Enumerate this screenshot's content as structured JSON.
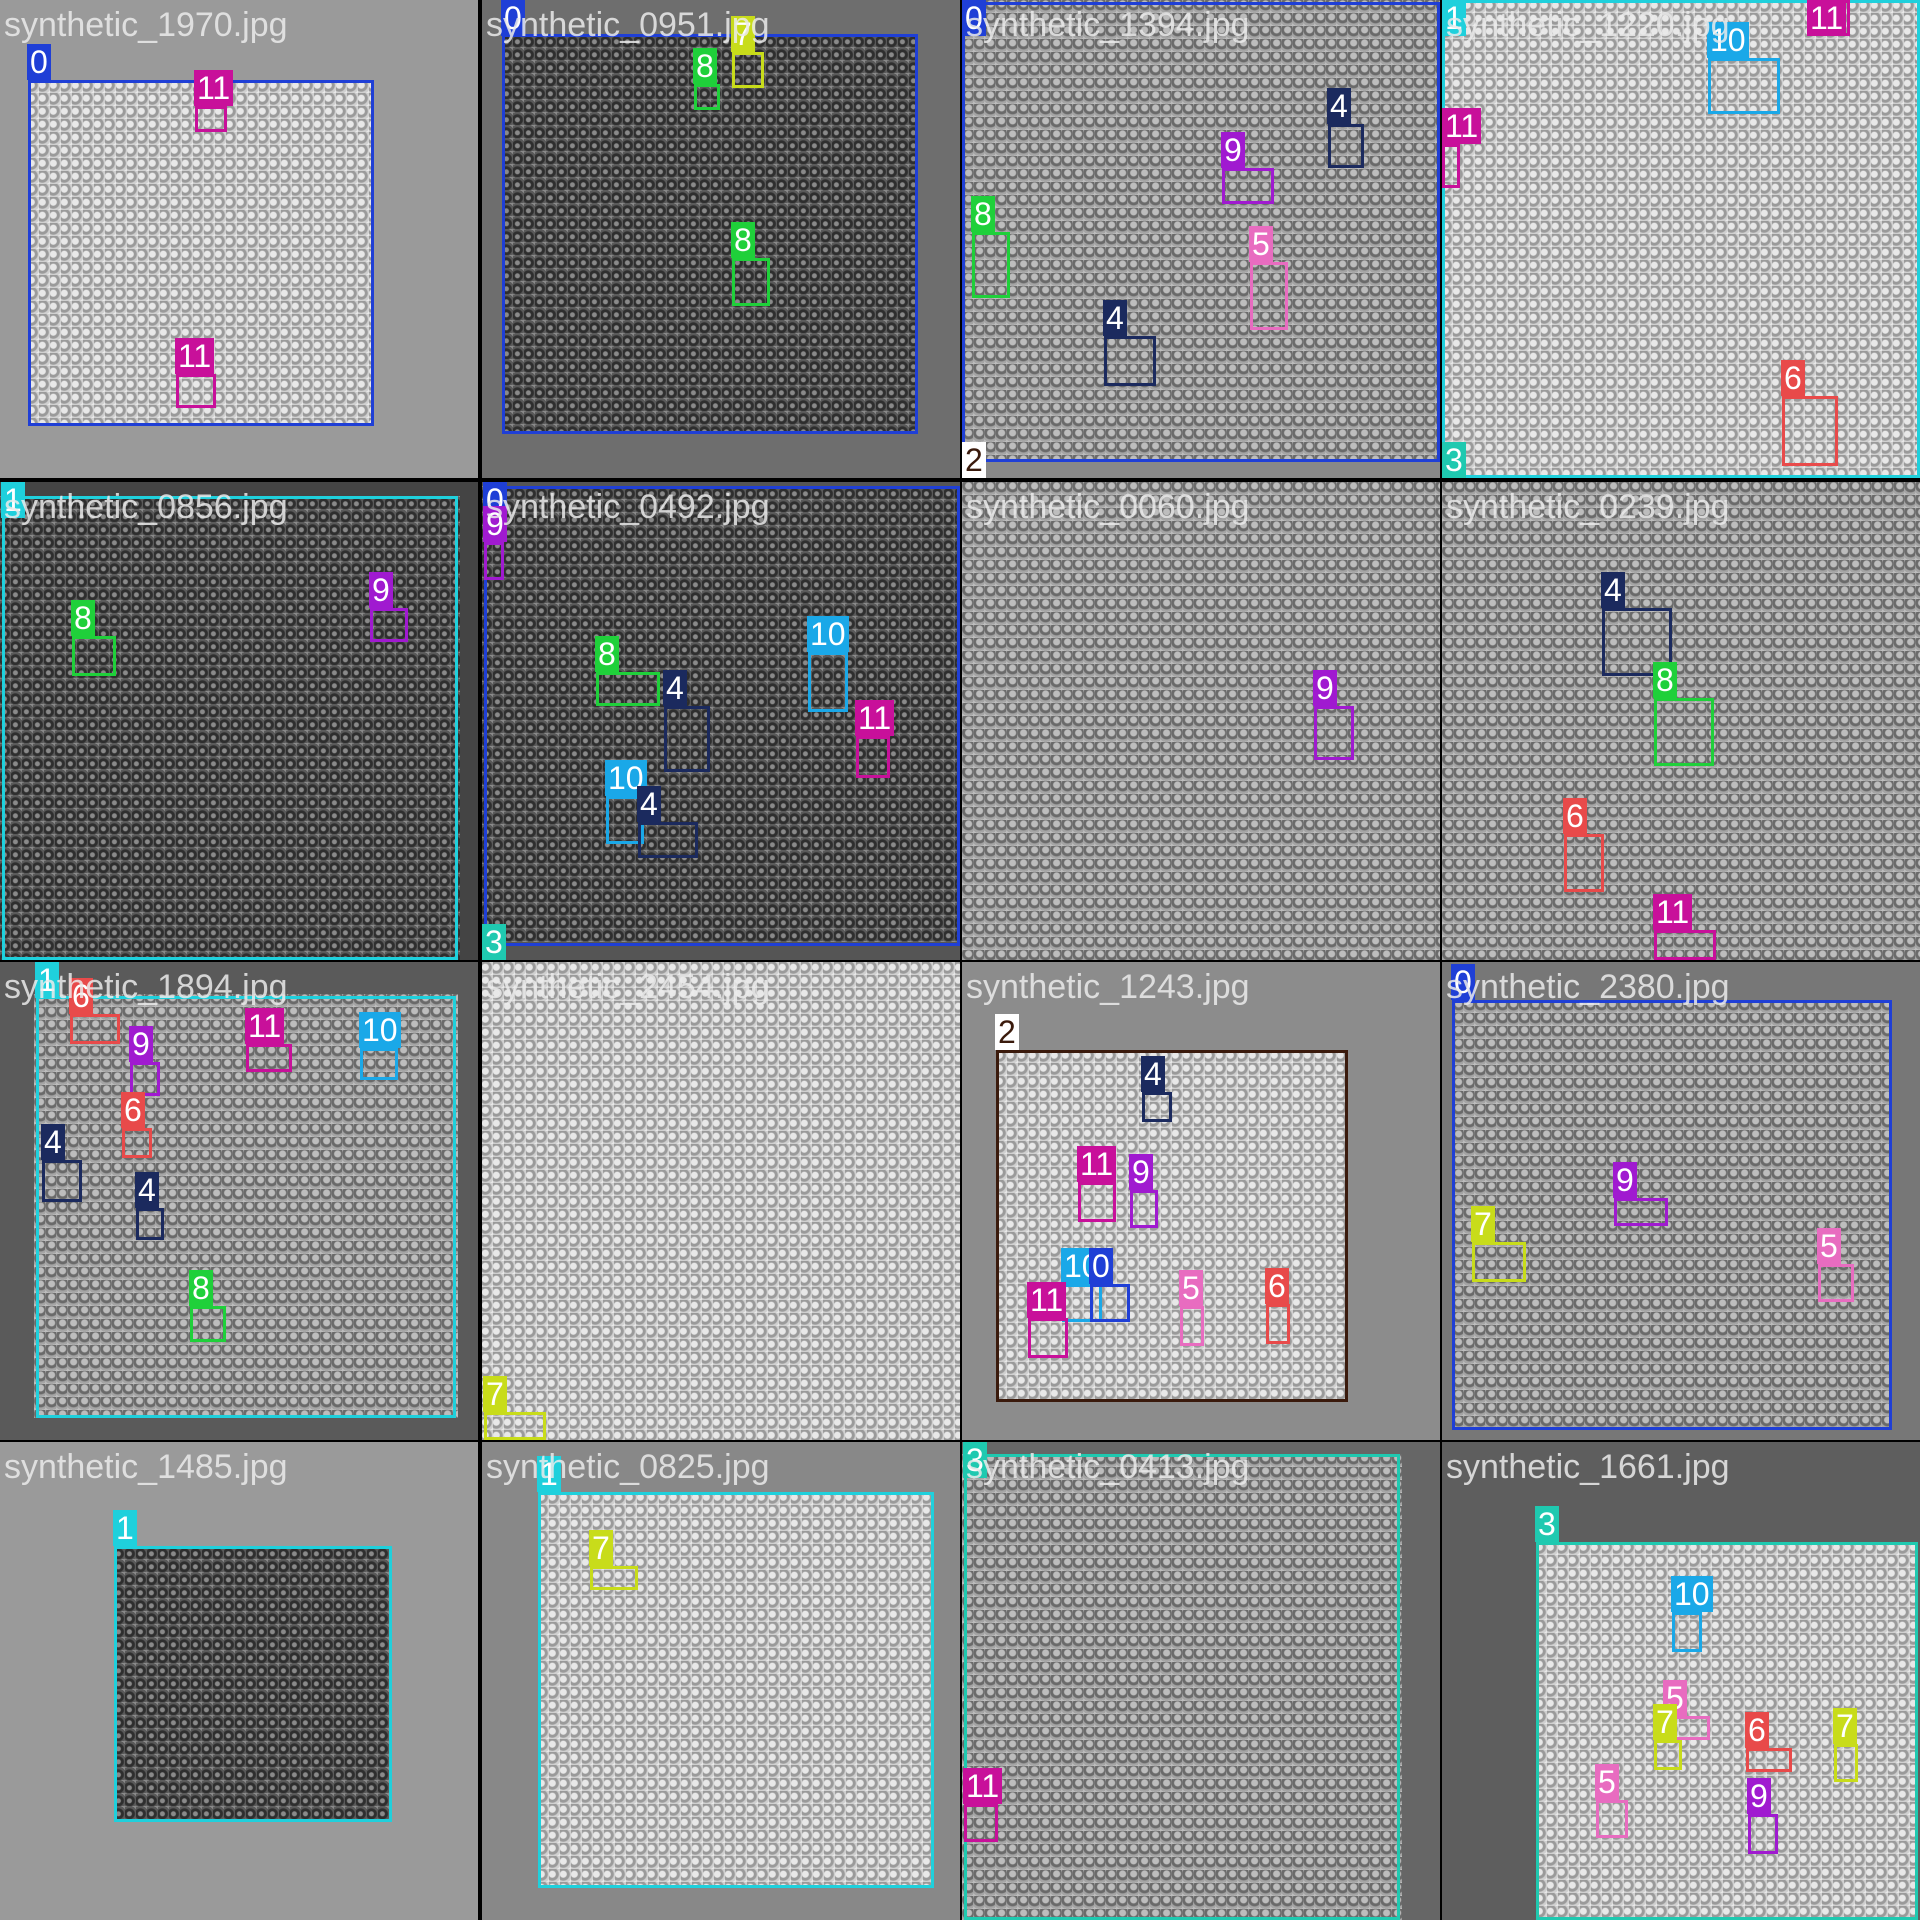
{
  "tiles": [
    {
      "name": "synthetic_1970.jpg",
      "boxes": [
        {
          "cls": "0"
        },
        {
          "cls": "11"
        },
        {
          "cls": "11"
        }
      ]
    },
    {
      "name": "synthetic_0951.jpg",
      "boxes": [
        {
          "cls": "0"
        },
        {
          "cls": "8"
        },
        {
          "cls": "7"
        },
        {
          "cls": "8"
        }
      ]
    },
    {
      "name": "synthetic_1394.jpg",
      "boxes": [
        {
          "cls": "0"
        },
        {
          "cls": "4"
        },
        {
          "cls": "9"
        },
        {
          "cls": "8"
        },
        {
          "cls": "5"
        },
        {
          "cls": "4"
        },
        {
          "cls": "2"
        }
      ]
    },
    {
      "name": "synthetic_1220.jpg",
      "boxes": [
        {
          "cls": "1"
        },
        {
          "cls": "10"
        },
        {
          "cls": "11"
        },
        {
          "cls": "11"
        },
        {
          "cls": "6"
        },
        {
          "cls": "3"
        }
      ]
    },
    {
      "name": "synthetic_0856.jpg",
      "boxes": [
        {
          "cls": "1"
        },
        {
          "cls": "8"
        },
        {
          "cls": "9"
        }
      ]
    },
    {
      "name": "synthetic_0492.jpg",
      "boxes": [
        {
          "cls": "0"
        },
        {
          "cls": "9"
        },
        {
          "cls": "8"
        },
        {
          "cls": "4"
        },
        {
          "cls": "10"
        },
        {
          "cls": "11"
        },
        {
          "cls": "10"
        },
        {
          "cls": "4"
        },
        {
          "cls": "3"
        }
      ]
    },
    {
      "name": "synthetic_0060.jpg",
      "boxes": [
        {
          "cls": "9"
        }
      ]
    },
    {
      "name": "synthetic_0239.jpg",
      "boxes": [
        {
          "cls": "4"
        },
        {
          "cls": "8"
        },
        {
          "cls": "6"
        },
        {
          "cls": "11"
        }
      ]
    },
    {
      "name": "synthetic_1894.jpg",
      "boxes": [
        {
          "cls": "1"
        },
        {
          "cls": "6"
        },
        {
          "cls": "9"
        },
        {
          "cls": "11"
        },
        {
          "cls": "10"
        },
        {
          "cls": "6"
        },
        {
          "cls": "4"
        },
        {
          "cls": "4"
        },
        {
          "cls": "8"
        }
      ]
    },
    {
      "name": "synthetic_2454.jpg",
      "boxes": [
        {
          "cls": "7"
        }
      ]
    },
    {
      "name": "synthetic_1243.jpg",
      "boxes": [
        {
          "cls": "2"
        },
        {
          "cls": "4"
        },
        {
          "cls": "11"
        },
        {
          "cls": "9"
        },
        {
          "cls": "10"
        },
        {
          "cls": "0"
        },
        {
          "cls": "5"
        },
        {
          "cls": "6"
        },
        {
          "cls": "11"
        }
      ]
    },
    {
      "name": "synthetic_2380.jpg",
      "boxes": [
        {
          "cls": "0"
        },
        {
          "cls": "9"
        },
        {
          "cls": "7"
        },
        {
          "cls": "5"
        }
      ]
    },
    {
      "name": "synthetic_1485.jpg",
      "boxes": [
        {
          "cls": "1"
        }
      ]
    },
    {
      "name": "synthetic_0825.jpg",
      "boxes": [
        {
          "cls": "1"
        },
        {
          "cls": "7"
        }
      ]
    },
    {
      "name": "synthetic_0413.jpg",
      "boxes": [
        {
          "cls": "3"
        },
        {
          "cls": "11"
        }
      ]
    },
    {
      "name": "synthetic_1661.jpg",
      "boxes": [
        {
          "cls": "3"
        },
        {
          "cls": "10"
        },
        {
          "cls": "5"
        },
        {
          "cls": "7"
        },
        {
          "cls": "6"
        },
        {
          "cls": "7"
        },
        {
          "cls": "5"
        },
        {
          "cls": "9"
        }
      ]
    }
  ],
  "class_colors": {
    "0": "#1f3fd6",
    "1": "#1fd0dc",
    "2": "#3a1a0c",
    "3": "#1fc9b0",
    "4": "#1b2a5e",
    "5": "#e86cc0",
    "6": "#e84a4a",
    "7": "#c8dc1a",
    "8": "#1fd03a",
    "9": "#a01ad0",
    "10": "#1aa8e8",
    "11": "#c8109a"
  },
  "class_label_text_colors": {
    "2": "#3a1a0c"
  }
}
